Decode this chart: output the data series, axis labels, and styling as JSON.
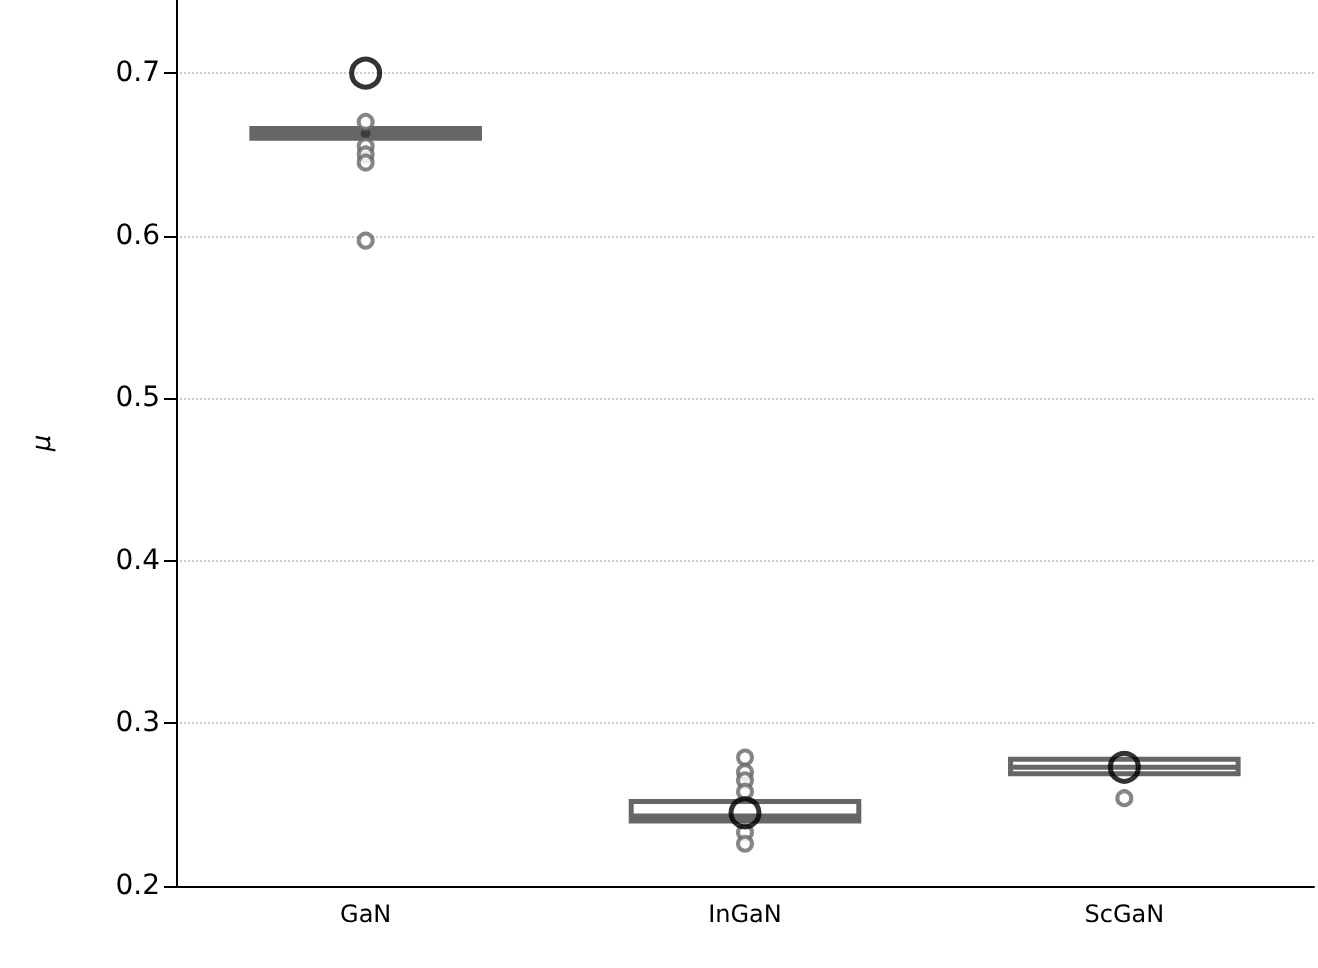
{
  "chart_data": {
    "type": "box",
    "ylabel": "μ",
    "categories": [
      "GaN",
      "InGaN",
      "ScGaN"
    ],
    "boxes": [
      {
        "low": 0.66,
        "q1": 0.66,
        "median": 0.663,
        "q3": 0.666,
        "high": 0.666,
        "outliers": [
          0.67,
          0.655,
          0.65,
          0.645,
          0.597
        ]
      },
      {
        "low": 0.24,
        "q1": 0.24,
        "median": 0.243,
        "q3": 0.252,
        "high": 0.252,
        "outliers": [
          0.279,
          0.27,
          0.265,
          0.258,
          0.233,
          0.226
        ]
      },
      {
        "low": 0.269,
        "q1": 0.269,
        "median": 0.273,
        "q3": 0.278,
        "high": 0.278,
        "outliers": [
          0.254
        ]
      }
    ],
    "color": "#666666",
    "series": [
      {
        "type": "scatter",
        "color": "#333333",
        "marker": "circle",
        "x": [
          "GaN"
        ],
        "values": [
          0.663
        ]
      },
      {
        "type": "scatter",
        "color": "#000000",
        "marker": "circle",
        "x": [
          "GaN",
          "InGaN",
          "ScGaN"
        ],
        "values": [
          0.7,
          0.245,
          0.273
        ]
      }
    ],
    "ylim": [
      0.2,
      0.745
    ],
    "yticks": [
      0.2,
      0.3,
      0.4,
      0.5,
      0.6,
      0.7
    ],
    "grid": "y",
    "legend": false
  }
}
